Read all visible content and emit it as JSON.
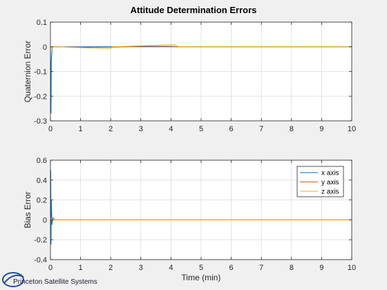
{
  "figure": {
    "title": "Attitude Determination Errors",
    "logo_text": "Princeton Satellite Systems"
  },
  "colors": {
    "background": "#f0f0f0",
    "axes_bg": "#ffffff",
    "grid": "#dcdcdc",
    "axis": "#262626",
    "x_axis_series": "#0072bd",
    "y_axis_series": "#d95319",
    "z_axis_series": "#edb120",
    "logo_blue": "#1f4e9c"
  },
  "chart_data": [
    {
      "type": "line",
      "title": "Attitude Determination Errors",
      "xlabel": "",
      "ylabel": "Quaternion Error",
      "xlim": [
        0,
        10
      ],
      "ylim": [
        -0.3,
        0.1
      ],
      "xticks": [
        0,
        1,
        2,
        3,
        4,
        5,
        6,
        7,
        8,
        9,
        10
      ],
      "yticks": [
        0.1,
        0,
        -0.1,
        -0.2,
        -0.3
      ],
      "ytick_labels": [
        "0.1",
        "0",
        "-0.1",
        "-0.2",
        "-0.3"
      ],
      "grid": true,
      "series": [
        {
          "color": "#0072bd",
          "x": [
            0,
            0.01,
            0.02,
            0.03,
            0.06,
            0.1,
            0.5,
            2,
            4,
            10
          ],
          "y": [
            0,
            -0.12,
            -0.27,
            -0.05,
            -0.005,
            0,
            0,
            0,
            0,
            0
          ]
        },
        {
          "color": "#d95319",
          "x": [
            0,
            0.1,
            1,
            2,
            3,
            4,
            4.2,
            6,
            10
          ],
          "y": [
            0,
            0,
            -0.002,
            -0.002,
            0.002,
            0.002,
            0,
            0,
            0
          ]
        },
        {
          "color": "#edb120",
          "x": [
            0,
            0.05,
            0.1,
            1,
            2,
            2.05,
            3,
            4.1,
            4.25,
            6,
            10
          ],
          "y": [
            0,
            -0.008,
            0.001,
            -0.004,
            -0.008,
            0,
            0.004,
            0.009,
            0,
            0,
            0
          ]
        }
      ]
    },
    {
      "type": "line",
      "title": "",
      "xlabel": "Time (min)",
      "ylabel": "Bias Error",
      "xlim": [
        0,
        10
      ],
      "ylim": [
        -0.4,
        0.6
      ],
      "xticks": [
        0,
        1,
        2,
        3,
        4,
        5,
        6,
        7,
        8,
        9,
        10
      ],
      "yticks": [
        0.6,
        0.4,
        0.2,
        0,
        -0.2,
        -0.4
      ],
      "ytick_labels": [
        "0.6",
        "0.4",
        "0.2",
        "0",
        "-0.2",
        "-0.4"
      ],
      "grid": true,
      "legend": {
        "placement": "top-right",
        "entries": [
          "x axis",
          "y axis",
          "z axis"
        ]
      },
      "series": [
        {
          "name": "x axis",
          "color": "#0072bd",
          "x": [
            0,
            0.01,
            0.02,
            0.03,
            0.05,
            0.08,
            0.15,
            10
          ],
          "y": [
            0,
            0.5,
            -0.25,
            0.2,
            -0.05,
            0.02,
            0,
            0
          ]
        },
        {
          "name": "y axis",
          "color": "#d95319",
          "x": [
            0,
            0.02,
            0.05,
            0.1,
            10
          ],
          "y": [
            0,
            0.02,
            -0.01,
            0,
            0
          ]
        },
        {
          "name": "z axis",
          "color": "#edb120",
          "x": [
            0,
            0.02,
            0.05,
            0.1,
            10
          ],
          "y": [
            0,
            0.01,
            0.005,
            0,
            0
          ]
        }
      ]
    }
  ]
}
